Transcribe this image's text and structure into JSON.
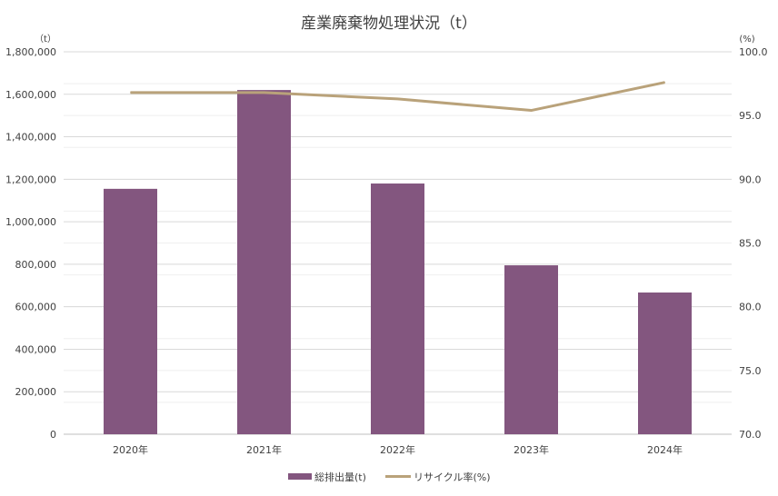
{
  "chart_data": {
    "type": "bar+line",
    "title": "産業廃棄物処理状況（t）",
    "categories": [
      "2020年",
      "2021年",
      "2022年",
      "2023年",
      "2024年"
    ],
    "series": [
      {
        "name": "総排出量(t)",
        "type": "bar",
        "axis": "left",
        "color": "#83567F",
        "values": [
          1155000,
          1620000,
          1180000,
          795000,
          667000
        ]
      },
      {
        "name": "リサイクル率(%)",
        "type": "line",
        "axis": "right",
        "color": "#B9A27A",
        "values": [
          96.8,
          96.8,
          96.3,
          95.4,
          97.6
        ]
      }
    ],
    "y_left": {
      "unit_label": "（t）",
      "ylim": [
        0,
        1800000
      ],
      "ticks": [
        "0",
        "200,000",
        "400,000",
        "600,000",
        "800,000",
        "1,000,000",
        "1,200,000",
        "1,400,000",
        "1,600,000",
        "1,800,000"
      ]
    },
    "y_right": {
      "unit_label": "(%)",
      "ylim": [
        70,
        100
      ],
      "ticks": [
        "70.0",
        "75.0",
        "80.0",
        "85.0",
        "90.0",
        "95.0",
        "100.0"
      ]
    },
    "grid": true,
    "legend": "bottom"
  }
}
